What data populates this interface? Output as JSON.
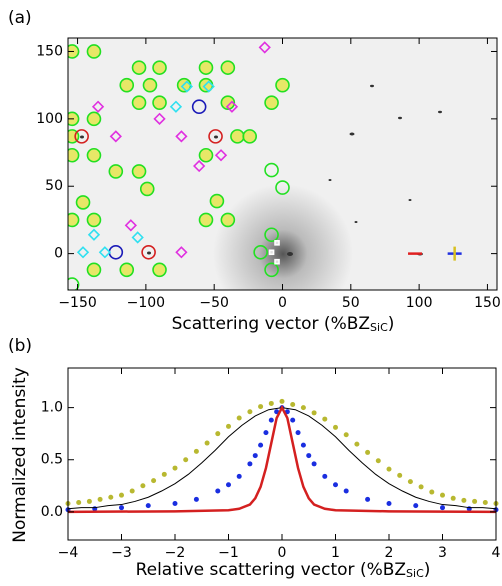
{
  "chart_data": [
    {
      "type": "marker-map",
      "label": "(a)",
      "xlabel": {
        "text": "Scattering vector (%BZ",
        "sub": "SiC",
        "end": ")"
      },
      "xlim": [
        -157,
        157
      ],
      "ylim": [
        -27,
        160
      ],
      "xticks": [
        {
          "value": -150,
          "label": "−150"
        },
        {
          "value": -100,
          "label": "−100"
        },
        {
          "value": -50,
          "label": "−50"
        },
        0,
        50,
        100,
        150
      ],
      "yticks": [
        0,
        50,
        100,
        150
      ],
      "series": [
        {
          "marker": "circle",
          "color": "#22e022",
          "fill": "#e4e43a",
          "x": [
            -154,
            -138,
            -105,
            -90,
            -114,
            -97,
            -56,
            -40,
            -72,
            -56,
            -105,
            -90,
            -40,
            -8,
            0,
            -154,
            -138,
            -33,
            -24,
            -154,
            -154,
            -138,
            -122,
            -105,
            -56,
            -99,
            -48,
            -56,
            -40,
            -146,
            -154,
            -138,
            -138,
            -114,
            -90
          ],
          "values": [
            150,
            150,
            138,
            138,
            125,
            125,
            138,
            138,
            125,
            125,
            112,
            112,
            112,
            112,
            125,
            100,
            100,
            87,
            87,
            87,
            73,
            73,
            61,
            61,
            73,
            48,
            39,
            25,
            25,
            38,
            25,
            25,
            -12,
            -12,
            -12
          ]
        },
        {
          "marker": "circle",
          "color": "#22e022",
          "fill": "none",
          "x": [
            -8,
            0,
            -16,
            -8,
            -8,
            -154
          ],
          "values": [
            62,
            49,
            1,
            14,
            -12,
            -23
          ]
        },
        {
          "marker": "circle",
          "color": "#d42020",
          "fill": "none",
          "x": [
            -147,
            -49,
            -98
          ],
          "values": [
            87,
            87,
            1
          ]
        },
        {
          "marker": "circle",
          "color": "#1a1ab8",
          "fill": "none",
          "x": [
            -61,
            -122
          ],
          "values": [
            109,
            1
          ]
        },
        {
          "marker": "diamond",
          "color": "#e030e0",
          "fill": "none",
          "x": [
            -13,
            -135,
            -122,
            -74,
            -90,
            -37,
            -61,
            -45,
            -111,
            -74
          ],
          "values": [
            153,
            109,
            87,
            87,
            100,
            109,
            65,
            73,
            21,
            1
          ]
        },
        {
          "marker": "diamond",
          "color": "#30e0f0",
          "fill": "none",
          "x": [
            -78,
            -70,
            -54,
            -138,
            -146,
            -106,
            -130
          ],
          "values": [
            109,
            124,
            124,
            14,
            1,
            12,
            1
          ]
        },
        {
          "marker": "square",
          "color": "#ffffff",
          "fill": "#ffffff",
          "x": [
            -4,
            -8,
            -4
          ],
          "values": [
            8,
            1,
            -6
          ]
        },
        {
          "marker": "dash",
          "color": "#e02020",
          "fill": "none",
          "x": [
            97
          ],
          "values": [
            0
          ]
        },
        {
          "marker": "dash",
          "color": "#2030e0",
          "fill": "none",
          "x": [
            126
          ],
          "values": [
            0
          ]
        },
        {
          "marker": "vdash",
          "color": "#d8c020",
          "fill": "none",
          "x": [
            126
          ],
          "values": [
            0
          ]
        }
      ]
    },
    {
      "type": "line",
      "label": "(b)",
      "xlabel": {
        "text": "Relative scattering vector (%BZ",
        "sub": "SiC",
        "end": ")"
      },
      "ylabel": "Normalized intensity",
      "xlim": [
        -4,
        4
      ],
      "ylim": [
        -0.27,
        1.38
      ],
      "xticks": [
        {
          "value": -4,
          "label": "−4"
        },
        {
          "value": -3,
          "label": "−3"
        },
        {
          "value": -2,
          "label": "−2"
        },
        {
          "value": -1,
          "label": "−1"
        },
        0,
        1,
        2,
        3,
        4
      ],
      "yticks": [
        {
          "value": 0,
          "label": "0.0"
        },
        {
          "value": 0.5,
          "label": "0.5"
        },
        {
          "value": 1,
          "label": "1.0"
        }
      ],
      "series": [
        {
          "style": "points",
          "color": "#b8b830",
          "x": [
            -4,
            -3.8,
            -3.6,
            -3.4,
            -3.2,
            -3,
            -2.8,
            -2.6,
            -2.4,
            -2.2,
            -2,
            -1.8,
            -1.6,
            -1.4,
            -1.2,
            -1,
            -0.8,
            -0.6,
            -0.4,
            -0.2,
            0,
            0.2,
            0.4,
            0.6,
            0.8,
            1,
            1.2,
            1.4,
            1.6,
            1.8,
            2,
            2.2,
            2.4,
            2.6,
            2.8,
            3,
            3.2,
            3.4,
            3.6,
            3.8,
            4
          ],
          "values": [
            0.08,
            0.09,
            0.1,
            0.12,
            0.14,
            0.16,
            0.2,
            0.25,
            0.3,
            0.36,
            0.42,
            0.5,
            0.58,
            0.66,
            0.75,
            0.82,
            0.9,
            0.96,
            1.01,
            1.04,
            1.06,
            1.03,
            1.0,
            0.95,
            0.89,
            0.81,
            0.74,
            0.65,
            0.57,
            0.49,
            0.41,
            0.35,
            0.29,
            0.24,
            0.19,
            0.16,
            0.13,
            0.11,
            0.1,
            0.09,
            0.08
          ]
        },
        {
          "style": "points",
          "color": "#1a2ee0",
          "x": [
            -4,
            -3.5,
            -3,
            -2.5,
            -2,
            -1.6,
            -1.2,
            -1,
            -0.8,
            -0.6,
            -0.5,
            -0.4,
            -0.3,
            -0.2,
            -0.1,
            0,
            0.1,
            0.2,
            0.3,
            0.4,
            0.5,
            0.6,
            0.8,
            1,
            1.2,
            1.6,
            2,
            2.5,
            3,
            3.5,
            4
          ],
          "values": [
            0.02,
            0.03,
            0.04,
            0.06,
            0.08,
            0.12,
            0.2,
            0.26,
            0.34,
            0.46,
            0.54,
            0.64,
            0.76,
            0.88,
            0.96,
            1.0,
            0.96,
            0.88,
            0.76,
            0.64,
            0.54,
            0.46,
            0.34,
            0.26,
            0.2,
            0.12,
            0.08,
            0.06,
            0.04,
            0.03,
            0.02
          ]
        },
        {
          "style": "line",
          "color": "#000000",
          "x": [
            -4,
            -3.75,
            -3.5,
            -3.25,
            -3,
            -2.75,
            -2.5,
            -2.25,
            -2,
            -1.75,
            -1.5,
            -1.25,
            -1,
            -0.75,
            -0.5,
            -0.25,
            0,
            0.25,
            0.5,
            0.75,
            1,
            1.25,
            1.5,
            1.75,
            2,
            2.25,
            2.5,
            2.75,
            3,
            3.25,
            3.5,
            3.75,
            4
          ],
          "values": [
            0.03,
            0.04,
            0.04,
            0.06,
            0.07,
            0.1,
            0.14,
            0.2,
            0.27,
            0.36,
            0.47,
            0.59,
            0.72,
            0.83,
            0.92,
            0.98,
            1.0,
            0.98,
            0.92,
            0.83,
            0.72,
            0.59,
            0.47,
            0.36,
            0.27,
            0.2,
            0.14,
            0.1,
            0.07,
            0.06,
            0.04,
            0.04,
            0.03
          ]
        },
        {
          "style": "line",
          "color": "#d42020",
          "x": [
            -4,
            -2,
            -1,
            -0.8,
            -0.6,
            -0.5,
            -0.4,
            -0.3,
            -0.2,
            -0.1,
            0,
            0.1,
            0.2,
            0.3,
            0.4,
            0.5,
            0.6,
            0.8,
            1,
            2,
            4
          ],
          "values": [
            0,
            0.005,
            0.015,
            0.03,
            0.07,
            0.13,
            0.24,
            0.42,
            0.66,
            0.9,
            1,
            0.9,
            0.66,
            0.42,
            0.24,
            0.13,
            0.07,
            0.03,
            0.015,
            0.005,
            0
          ]
        }
      ]
    }
  ]
}
